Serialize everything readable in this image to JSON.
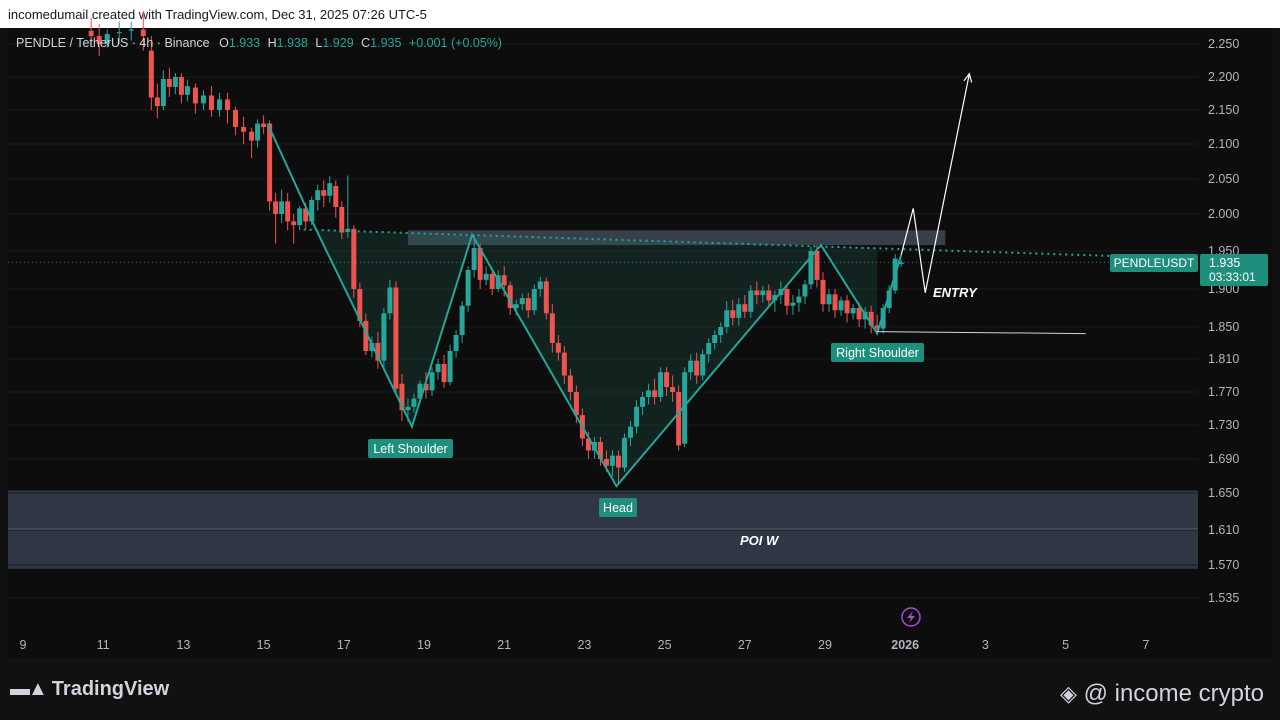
{
  "header": {
    "credit": "incomedumail created with TradingView.com, Dec 31, 2025 07:26 UTC-5"
  },
  "legend": {
    "symbol": "PENDLE / TetherUS · 4h · Binance",
    "o_label": "O",
    "o": "1.933",
    "h_label": "H",
    "h": "1.938",
    "l_label": "L",
    "l": "1.929",
    "c_label": "C",
    "c": "1.935",
    "change": "+0.001 (+0.05%)"
  },
  "price_label": {
    "ticker": "PENDLEUSDT",
    "price": "1.935",
    "countdown": "03:33:01"
  },
  "annotations": {
    "left_shoulder": "Left Shoulder",
    "head": "Head",
    "right_shoulder": "Right Shoulder",
    "entry": "ENTRY",
    "poi": "POI W"
  },
  "footer": {
    "brand": "TradingView",
    "watermark": "@ income crypto"
  },
  "colors": {
    "up": "#26a69a",
    "down": "#ef5350",
    "pattern": "#26a69a",
    "zone": "#3a4556",
    "background": "#0d0d0d"
  },
  "chart_data": {
    "type": "candlestick",
    "title": "PENDLE / TetherUS · 4h · Binance",
    "x_ticks": [
      "9",
      "11",
      "13",
      "15",
      "17",
      "19",
      "21",
      "23",
      "25",
      "27",
      "29",
      "2026",
      "3",
      "5",
      "7"
    ],
    "y_ticks": [
      2.25,
      2.2,
      2.15,
      2.1,
      2.05,
      2.0,
      1.95,
      1.9,
      1.85,
      1.81,
      1.77,
      1.73,
      1.69,
      1.65,
      1.61,
      1.57,
      1.535
    ],
    "y_tick_labels": [
      "2.250",
      "2.200",
      "2.150",
      "2.100",
      "2.050",
      "2.000",
      "1.950",
      "1.900",
      "1.850",
      "1.810",
      "1.770",
      "1.730",
      "1.690",
      "1.650",
      "1.610",
      "1.570",
      "1.535"
    ],
    "current_price": 1.935,
    "pattern_points": [
      {
        "day": 15.1,
        "price": 2.13
      },
      {
        "day": 16.3,
        "price": 1.98
      },
      {
        "day": 18.7,
        "price": 1.728
      },
      {
        "day": 20.2,
        "price": 1.972
      },
      {
        "day": 23.8,
        "price": 1.658
      },
      {
        "day": 28.9,
        "price": 1.958
      },
      {
        "day": 30.3,
        "price": 1.842
      },
      {
        "day": 30.9,
        "price": 1.945
      }
    ],
    "neckline": [
      {
        "day": 16.0,
        "price": 1.979
      },
      {
        "day": 37.0,
        "price": 1.942
      }
    ],
    "resistance_zone": {
      "day_from": 18.6,
      "day_to": 32.0,
      "price_from": 1.958,
      "price_to": 1.978
    },
    "poi_zone": {
      "price_from": 1.566,
      "price_to": 1.653,
      "mid": 1.611
    },
    "projection": [
      {
        "day": 30.9,
        "price": 1.945
      },
      {
        "day": 31.2,
        "price": 2.008
      },
      {
        "day": 31.5,
        "price": 1.895
      },
      {
        "day": 32.6,
        "price": 2.205
      }
    ],
    "support_line": {
      "day_from": 30.3,
      "day_to": 35.5,
      "price": 1.843
    },
    "candles": [
      {
        "day": 10.7,
        "o": 2.27,
        "h": 2.29,
        "c": 2.262,
        "l": 2.25
      },
      {
        "day": 10.9,
        "o": 2.262,
        "h": 2.28,
        "c": 2.25,
        "l": 2.232
      },
      {
        "day": 11.1,
        "o": 2.25,
        "h": 2.272,
        "c": 2.265,
        "l": 2.245
      },
      {
        "day": 11.4,
        "o": 2.268,
        "h": 2.284,
        "c": 2.268,
        "l": 2.25
      },
      {
        "day": 11.7,
        "o": 2.27,
        "h": 2.284,
        "c": 2.272,
        "l": 2.255
      },
      {
        "day": 12.0,
        "o": 2.272,
        "h": 2.3,
        "c": 2.262,
        "l": 2.24
      },
      {
        "day": 12.2,
        "o": 2.24,
        "h": 2.262,
        "c": 2.169,
        "l": 2.15
      },
      {
        "day": 12.35,
        "o": 2.169,
        "h": 2.19,
        "c": 2.156,
        "l": 2.138
      },
      {
        "day": 12.5,
        "o": 2.156,
        "h": 2.21,
        "c": 2.197,
        "l": 2.15
      },
      {
        "day": 12.65,
        "o": 2.197,
        "h": 2.214,
        "c": 2.185,
        "l": 2.17
      },
      {
        "day": 12.8,
        "o": 2.185,
        "h": 2.206,
        "c": 2.2,
        "l": 2.174
      },
      {
        "day": 12.95,
        "o": 2.2,
        "h": 2.206,
        "c": 2.173,
        "l": 2.16
      },
      {
        "day": 13.1,
        "o": 2.173,
        "h": 2.196,
        "c": 2.186,
        "l": 2.163
      },
      {
        "day": 13.3,
        "o": 2.184,
        "h": 2.19,
        "c": 2.16,
        "l": 2.145
      },
      {
        "day": 13.5,
        "o": 2.16,
        "h": 2.18,
        "c": 2.172,
        "l": 2.15
      },
      {
        "day": 13.7,
        "o": 2.172,
        "h": 2.186,
        "c": 2.15,
        "l": 2.14
      },
      {
        "day": 13.9,
        "o": 2.15,
        "h": 2.176,
        "c": 2.166,
        "l": 2.14
      },
      {
        "day": 14.1,
        "o": 2.166,
        "h": 2.176,
        "c": 2.15,
        "l": 2.13
      },
      {
        "day": 14.3,
        "o": 2.15,
        "h": 2.155,
        "c": 2.125,
        "l": 2.113
      },
      {
        "day": 14.5,
        "o": 2.125,
        "h": 2.14,
        "c": 2.118,
        "l": 2.1
      },
      {
        "day": 14.7,
        "o": 2.118,
        "h": 2.124,
        "c": 2.105,
        "l": 2.08
      },
      {
        "day": 14.85,
        "o": 2.105,
        "h": 2.136,
        "c": 2.13,
        "l": 2.095
      },
      {
        "day": 15.0,
        "o": 2.13,
        "h": 2.142,
        "c": 2.125,
        "l": 2.115
      },
      {
        "day": 15.15,
        "o": 2.13,
        "h": 2.135,
        "c": 2.018,
        "l": 2.005
      },
      {
        "day": 15.3,
        "o": 2.018,
        "h": 2.03,
        "c": 2.0,
        "l": 1.96
      },
      {
        "day": 15.45,
        "o": 2.0,
        "h": 2.035,
        "c": 2.018,
        "l": 1.988
      },
      {
        "day": 15.6,
        "o": 2.018,
        "h": 2.03,
        "c": 1.99,
        "l": 1.978
      },
      {
        "day": 15.75,
        "o": 1.99,
        "h": 2.0,
        "c": 1.985,
        "l": 1.96
      },
      {
        "day": 15.9,
        "o": 1.985,
        "h": 2.012,
        "c": 2.008,
        "l": 1.978
      },
      {
        "day": 16.05,
        "o": 2.008,
        "h": 2.016,
        "c": 1.99,
        "l": 1.98
      },
      {
        "day": 16.2,
        "o": 1.99,
        "h": 2.025,
        "c": 2.02,
        "l": 1.985
      },
      {
        "day": 16.35,
        "o": 2.02,
        "h": 2.042,
        "c": 2.034,
        "l": 2.005
      },
      {
        "day": 16.5,
        "o": 2.034,
        "h": 2.048,
        "c": 2.026,
        "l": 2.01
      },
      {
        "day": 16.65,
        "o": 2.026,
        "h": 2.054,
        "c": 2.044,
        "l": 2.016
      },
      {
        "day": 16.8,
        "o": 2.04,
        "h": 2.048,
        "c": 2.01,
        "l": 1.995
      },
      {
        "day": 16.95,
        "o": 2.01,
        "h": 2.018,
        "c": 1.975,
        "l": 1.966
      },
      {
        "day": 17.1,
        "o": 1.976,
        "h": 2.055,
        "c": 1.98,
        "l": 1.968
      },
      {
        "day": 17.25,
        "o": 1.98,
        "h": 1.985,
        "c": 1.9,
        "l": 1.888
      },
      {
        "day": 17.4,
        "o": 1.9,
        "h": 1.908,
        "c": 1.858,
        "l": 1.85
      },
      {
        "day": 17.55,
        "o": 1.858,
        "h": 1.868,
        "c": 1.82,
        "l": 1.815
      },
      {
        "day": 17.7,
        "o": 1.82,
        "h": 1.838,
        "c": 1.83,
        "l": 1.812
      },
      {
        "day": 17.85,
        "o": 1.83,
        "h": 1.844,
        "c": 1.808,
        "l": 1.798
      },
      {
        "day": 18.0,
        "o": 1.808,
        "h": 1.875,
        "c": 1.868,
        "l": 1.8
      },
      {
        "day": 18.15,
        "o": 1.868,
        "h": 1.912,
        "c": 1.902,
        "l": 1.86
      },
      {
        "day": 18.3,
        "o": 1.902,
        "h": 1.91,
        "c": 1.774,
        "l": 1.768
      },
      {
        "day": 18.45,
        "o": 1.78,
        "h": 1.792,
        "c": 1.748,
        "l": 1.735
      },
      {
        "day": 18.6,
        "o": 1.748,
        "h": 1.762,
        "c": 1.752,
        "l": 1.734
      },
      {
        "day": 18.75,
        "o": 1.752,
        "h": 1.768,
        "c": 1.762,
        "l": 1.745
      },
      {
        "day": 18.9,
        "o": 1.762,
        "h": 1.784,
        "c": 1.78,
        "l": 1.756
      },
      {
        "day": 19.05,
        "o": 1.78,
        "h": 1.794,
        "c": 1.772,
        "l": 1.762
      },
      {
        "day": 19.2,
        "o": 1.772,
        "h": 1.8,
        "c": 1.794,
        "l": 1.765
      },
      {
        "day": 19.35,
        "o": 1.794,
        "h": 1.81,
        "c": 1.804,
        "l": 1.785
      },
      {
        "day": 19.5,
        "o": 1.804,
        "h": 1.815,
        "c": 1.782,
        "l": 1.775
      },
      {
        "day": 19.65,
        "o": 1.782,
        "h": 1.828,
        "c": 1.82,
        "l": 1.778
      },
      {
        "day": 19.8,
        "o": 1.82,
        "h": 1.846,
        "c": 1.84,
        "l": 1.812
      },
      {
        "day": 19.95,
        "o": 1.84,
        "h": 1.884,
        "c": 1.878,
        "l": 1.83
      },
      {
        "day": 20.1,
        "o": 1.878,
        "h": 1.93,
        "c": 1.925,
        "l": 1.87
      },
      {
        "day": 20.25,
        "o": 1.925,
        "h": 1.972,
        "c": 1.954,
        "l": 1.915
      },
      {
        "day": 20.4,
        "o": 1.954,
        "h": 1.96,
        "c": 1.912,
        "l": 1.9
      },
      {
        "day": 20.55,
        "o": 1.912,
        "h": 1.93,
        "c": 1.92,
        "l": 1.905
      },
      {
        "day": 20.7,
        "o": 1.92,
        "h": 1.926,
        "c": 1.9,
        "l": 1.892
      },
      {
        "day": 20.85,
        "o": 1.9,
        "h": 1.925,
        "c": 1.918,
        "l": 1.896
      },
      {
        "day": 21.0,
        "o": 1.918,
        "h": 1.93,
        "c": 1.905,
        "l": 1.89
      },
      {
        "day": 21.15,
        "o": 1.905,
        "h": 1.91,
        "c": 1.875,
        "l": 1.866
      },
      {
        "day": 21.3,
        "o": 1.875,
        "h": 1.886,
        "c": 1.88,
        "l": 1.865
      },
      {
        "day": 21.45,
        "o": 1.88,
        "h": 1.894,
        "c": 1.888,
        "l": 1.872
      },
      {
        "day": 21.6,
        "o": 1.888,
        "h": 1.895,
        "c": 1.872,
        "l": 1.862
      },
      {
        "day": 21.75,
        "o": 1.872,
        "h": 1.906,
        "c": 1.9,
        "l": 1.866
      },
      {
        "day": 21.9,
        "o": 1.9,
        "h": 1.916,
        "c": 1.91,
        "l": 1.89
      },
      {
        "day": 22.05,
        "o": 1.91,
        "h": 1.915,
        "c": 1.868,
        "l": 1.86
      },
      {
        "day": 22.2,
        "o": 1.868,
        "h": 1.88,
        "c": 1.83,
        "l": 1.818
      },
      {
        "day": 22.35,
        "o": 1.83,
        "h": 1.84,
        "c": 1.818,
        "l": 1.808
      },
      {
        "day": 22.5,
        "o": 1.818,
        "h": 1.826,
        "c": 1.79,
        "l": 1.78
      },
      {
        "day": 22.65,
        "o": 1.79,
        "h": 1.798,
        "c": 1.77,
        "l": 1.76
      },
      {
        "day": 22.8,
        "o": 1.77,
        "h": 1.778,
        "c": 1.742,
        "l": 1.732
      },
      {
        "day": 22.95,
        "o": 1.742,
        "h": 1.75,
        "c": 1.714,
        "l": 1.705
      },
      {
        "day": 23.1,
        "o": 1.714,
        "h": 1.722,
        "c": 1.7,
        "l": 1.69
      },
      {
        "day": 23.25,
        "o": 1.7,
        "h": 1.716,
        "c": 1.71,
        "l": 1.69
      },
      {
        "day": 23.4,
        "o": 1.71,
        "h": 1.716,
        "c": 1.69,
        "l": 1.682
      },
      {
        "day": 23.55,
        "o": 1.69,
        "h": 1.7,
        "c": 1.682,
        "l": 1.675
      },
      {
        "day": 23.7,
        "o": 1.682,
        "h": 1.7,
        "c": 1.694,
        "l": 1.67
      },
      {
        "day": 23.85,
        "o": 1.694,
        "h": 1.7,
        "c": 1.68,
        "l": 1.66
      },
      {
        "day": 24.0,
        "o": 1.68,
        "h": 1.72,
        "c": 1.715,
        "l": 1.675
      },
      {
        "day": 24.15,
        "o": 1.715,
        "h": 1.735,
        "c": 1.728,
        "l": 1.705
      },
      {
        "day": 24.3,
        "o": 1.728,
        "h": 1.76,
        "c": 1.752,
        "l": 1.72
      },
      {
        "day": 24.45,
        "o": 1.752,
        "h": 1.77,
        "c": 1.764,
        "l": 1.742
      },
      {
        "day": 24.6,
        "o": 1.764,
        "h": 1.78,
        "c": 1.772,
        "l": 1.755
      },
      {
        "day": 24.75,
        "o": 1.772,
        "h": 1.786,
        "c": 1.764,
        "l": 1.755
      },
      {
        "day": 24.9,
        "o": 1.764,
        "h": 1.8,
        "c": 1.794,
        "l": 1.758
      },
      {
        "day": 25.05,
        "o": 1.794,
        "h": 1.8,
        "c": 1.776,
        "l": 1.765
      },
      {
        "day": 25.2,
        "o": 1.776,
        "h": 1.79,
        "c": 1.77,
        "l": 1.758
      },
      {
        "day": 25.35,
        "o": 1.77,
        "h": 1.778,
        "c": 1.706,
        "l": 1.7
      },
      {
        "day": 25.5,
        "o": 1.708,
        "h": 1.8,
        "c": 1.794,
        "l": 1.704
      },
      {
        "day": 25.65,
        "o": 1.794,
        "h": 1.816,
        "c": 1.808,
        "l": 1.785
      },
      {
        "day": 25.8,
        "o": 1.808,
        "h": 1.818,
        "c": 1.79,
        "l": 1.78
      },
      {
        "day": 25.95,
        "o": 1.79,
        "h": 1.822,
        "c": 1.816,
        "l": 1.784
      },
      {
        "day": 26.1,
        "o": 1.816,
        "h": 1.836,
        "c": 1.83,
        "l": 1.806
      },
      {
        "day": 26.25,
        "o": 1.83,
        "h": 1.846,
        "c": 1.84,
        "l": 1.822
      },
      {
        "day": 26.4,
        "o": 1.84,
        "h": 1.856,
        "c": 1.85,
        "l": 1.83
      },
      {
        "day": 26.55,
        "o": 1.85,
        "h": 1.884,
        "c": 1.872,
        "l": 1.842
      },
      {
        "day": 26.7,
        "o": 1.872,
        "h": 1.886,
        "c": 1.862,
        "l": 1.852
      },
      {
        "day": 26.85,
        "o": 1.862,
        "h": 1.888,
        "c": 1.88,
        "l": 1.852
      },
      {
        "day": 27.0,
        "o": 1.88,
        "h": 1.892,
        "c": 1.87,
        "l": 1.862
      },
      {
        "day": 27.15,
        "o": 1.87,
        "h": 1.905,
        "c": 1.898,
        "l": 1.862
      },
      {
        "day": 27.3,
        "o": 1.898,
        "h": 1.91,
        "c": 1.892,
        "l": 1.88
      },
      {
        "day": 27.45,
        "o": 1.892,
        "h": 1.904,
        "c": 1.898,
        "l": 1.882
      },
      {
        "day": 27.6,
        "o": 1.898,
        "h": 1.906,
        "c": 1.885,
        "l": 1.876
      },
      {
        "day": 27.75,
        "o": 1.885,
        "h": 1.898,
        "c": 1.892,
        "l": 1.87
      },
      {
        "day": 27.9,
        "o": 1.892,
        "h": 1.91,
        "c": 1.9,
        "l": 1.88
      },
      {
        "day": 28.05,
        "o": 1.9,
        "h": 1.906,
        "c": 1.878,
        "l": 1.866
      },
      {
        "day": 28.2,
        "o": 1.878,
        "h": 1.892,
        "c": 1.882,
        "l": 1.866
      },
      {
        "day": 28.35,
        "o": 1.882,
        "h": 1.9,
        "c": 1.89,
        "l": 1.87
      },
      {
        "day": 28.5,
        "o": 1.89,
        "h": 1.912,
        "c": 1.906,
        "l": 1.88
      },
      {
        "day": 28.65,
        "o": 1.906,
        "h": 1.956,
        "c": 1.95,
        "l": 1.9
      },
      {
        "day": 28.8,
        "o": 1.95,
        "h": 1.958,
        "c": 1.912,
        "l": 1.902
      },
      {
        "day": 28.95,
        "o": 1.912,
        "h": 1.922,
        "c": 1.88,
        "l": 1.87
      },
      {
        "day": 29.1,
        "o": 1.88,
        "h": 1.9,
        "c": 1.893,
        "l": 1.87
      },
      {
        "day": 29.25,
        "o": 1.893,
        "h": 1.9,
        "c": 1.872,
        "l": 1.862
      },
      {
        "day": 29.4,
        "o": 1.872,
        "h": 1.89,
        "c": 1.885,
        "l": 1.865
      },
      {
        "day": 29.55,
        "o": 1.885,
        "h": 1.892,
        "c": 1.868,
        "l": 1.856
      },
      {
        "day": 29.7,
        "o": 1.868,
        "h": 1.88,
        "c": 1.875,
        "l": 1.86
      },
      {
        "day": 29.85,
        "o": 1.875,
        "h": 1.882,
        "c": 1.86,
        "l": 1.85
      },
      {
        "day": 30.0,
        "o": 1.86,
        "h": 1.876,
        "c": 1.87,
        "l": 1.848
      },
      {
        "day": 30.15,
        "o": 1.87,
        "h": 1.878,
        "c": 1.852,
        "l": 1.842
      },
      {
        "day": 30.3,
        "o": 1.852,
        "h": 1.866,
        "c": 1.848,
        "l": 1.84
      },
      {
        "day": 30.45,
        "o": 1.848,
        "h": 1.88,
        "c": 1.875,
        "l": 1.842
      },
      {
        "day": 30.6,
        "o": 1.875,
        "h": 1.905,
        "c": 1.898,
        "l": 1.868
      },
      {
        "day": 30.75,
        "o": 1.898,
        "h": 1.946,
        "c": 1.94,
        "l": 1.894
      },
      {
        "day": 30.9,
        "o": 1.933,
        "h": 1.938,
        "c": 1.935,
        "l": 1.929
      }
    ]
  }
}
